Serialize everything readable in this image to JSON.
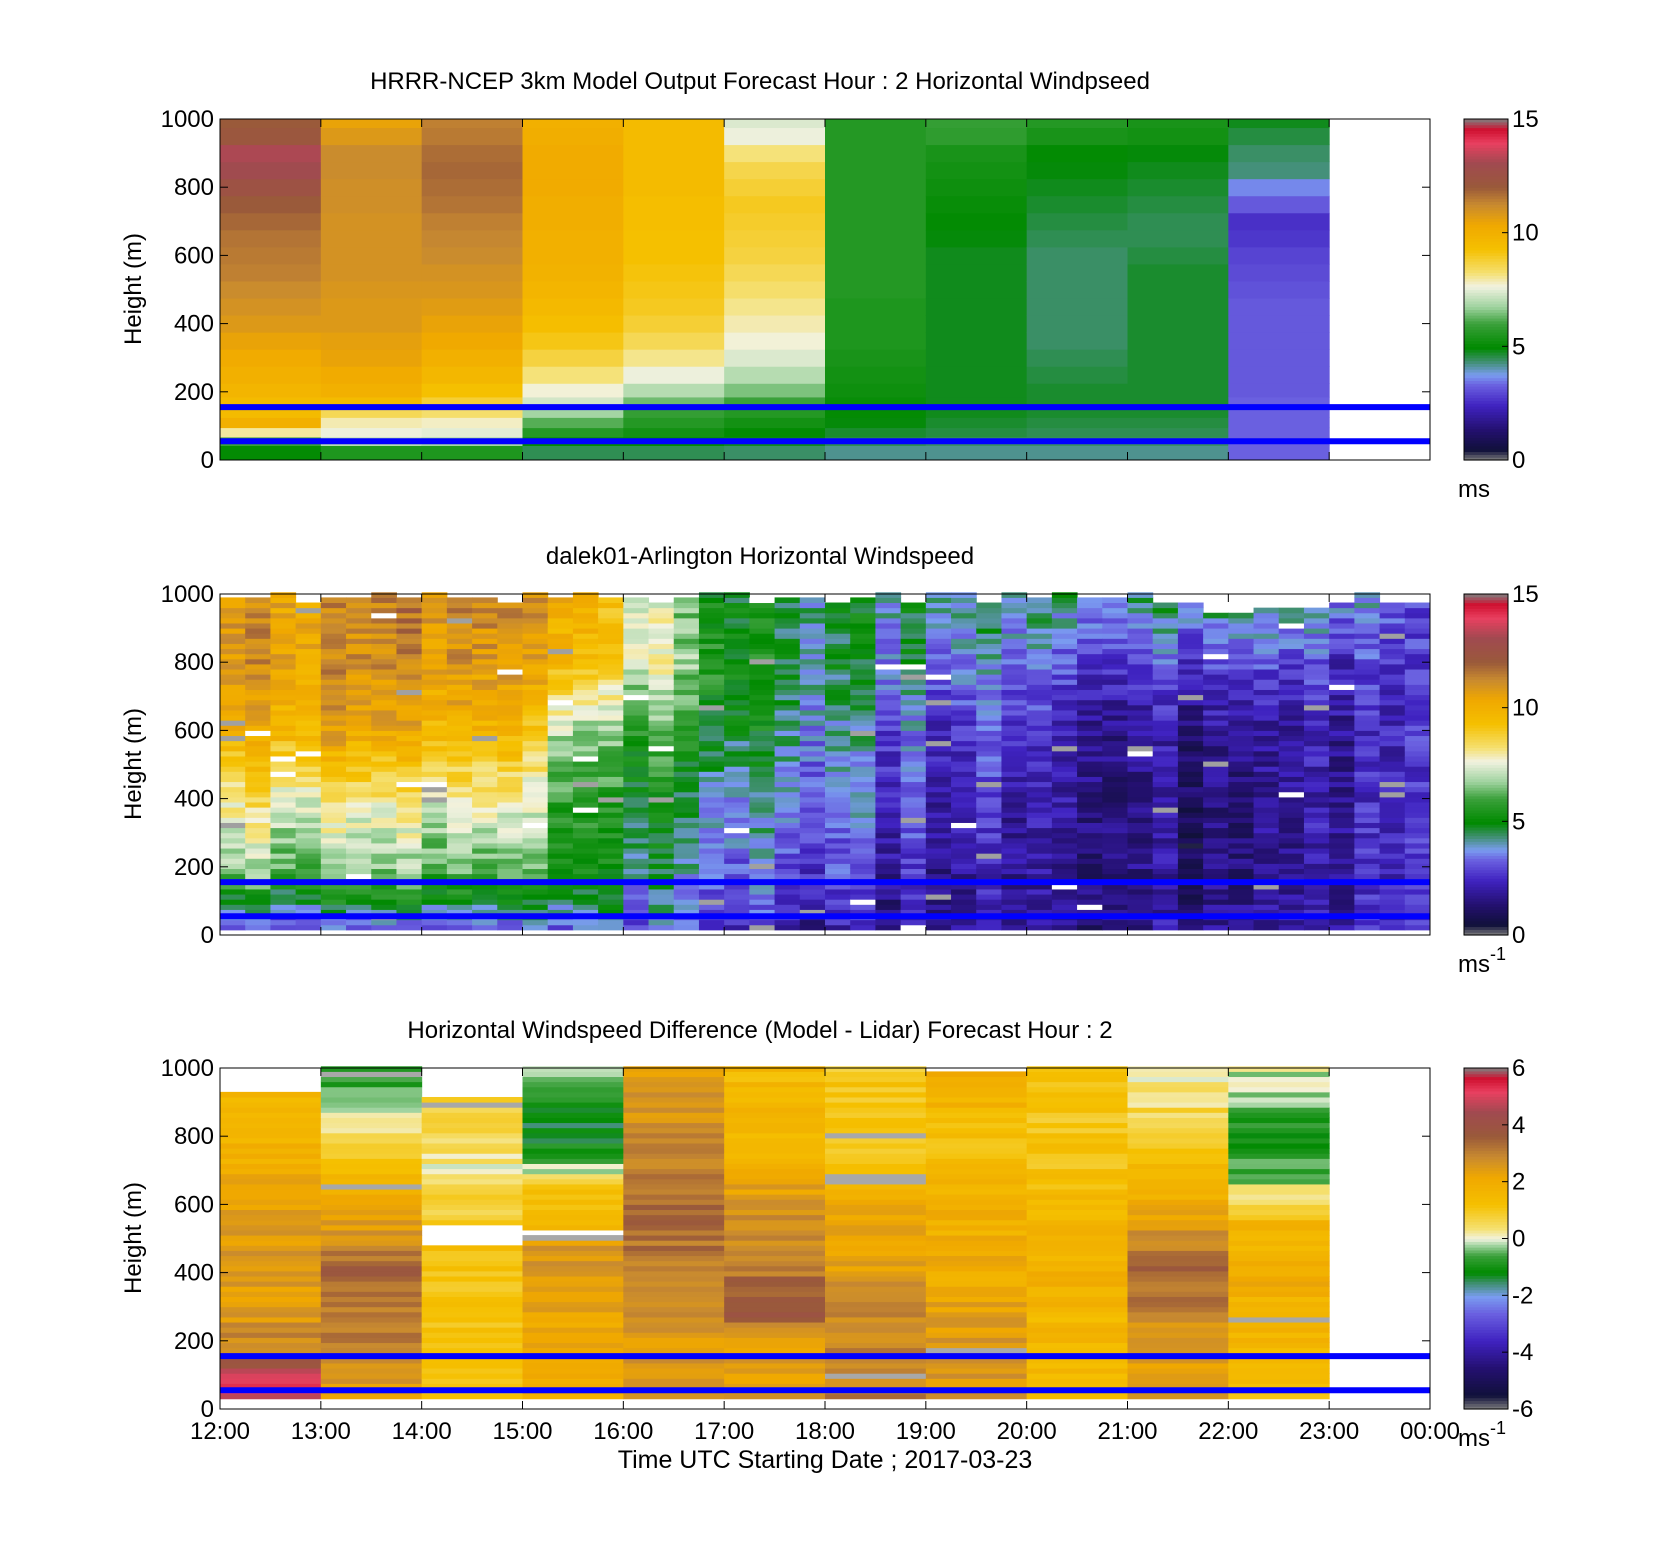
{
  "figure": {
    "xlabel": "Time UTC  Starting Date ; 2017-03-23"
  },
  "palette": {
    "speed": [
      [
        0.0,
        "#7f7f7f"
      ],
      [
        0.03,
        "#10103a"
      ],
      [
        0.09,
        "#241070"
      ],
      [
        0.16,
        "#3f22c0"
      ],
      [
        0.22,
        "#6a60e0"
      ],
      [
        0.25,
        "#7a9cf0"
      ],
      [
        0.29,
        "#3f8f6f"
      ],
      [
        0.33,
        "#008a00"
      ],
      [
        0.4,
        "#3aa03a"
      ],
      [
        0.45,
        "#9fd39f"
      ],
      [
        0.51,
        "#f2f2e0"
      ],
      [
        0.55,
        "#f5e070"
      ],
      [
        0.62,
        "#f5c000"
      ],
      [
        0.69,
        "#f0a800"
      ],
      [
        0.75,
        "#c88a30"
      ],
      [
        0.8,
        "#9a5a3a"
      ],
      [
        0.87,
        "#a04a50"
      ],
      [
        0.93,
        "#e84060"
      ],
      [
        0.97,
        "#d01030"
      ],
      [
        1.0,
        "#7f7f7f"
      ]
    ],
    "diff": [
      [
        0.0,
        "#7f7f7f"
      ],
      [
        0.04,
        "#10103a"
      ],
      [
        0.12,
        "#241070"
      ],
      [
        0.2,
        "#3f22c0"
      ],
      [
        0.28,
        "#6a60e0"
      ],
      [
        0.33,
        "#7a9cf0"
      ],
      [
        0.37,
        "#3f8f6f"
      ],
      [
        0.4,
        "#008a00"
      ],
      [
        0.45,
        "#3aa03a"
      ],
      [
        0.48,
        "#9fd39f"
      ],
      [
        0.5,
        "#f2f2e0"
      ],
      [
        0.53,
        "#f5e070"
      ],
      [
        0.6,
        "#f5c000"
      ],
      [
        0.68,
        "#f0a800"
      ],
      [
        0.74,
        "#c88a30"
      ],
      [
        0.8,
        "#9a5a3a"
      ],
      [
        0.87,
        "#a04a50"
      ],
      [
        0.93,
        "#e84060"
      ],
      [
        0.97,
        "#d01030"
      ],
      [
        1.0,
        "#7f7f7f"
      ]
    ],
    "line_color": "#0000ff"
  },
  "chart_data": [
    {
      "type": "heatmap",
      "id": "model",
      "title": "HRRR-NCEP 3km Model Output   Forecast Hour : 2 Horizontal Windpseed",
      "xlabel": "",
      "ylabel": "Height (m)",
      "x_ticks": [
        "",
        "",
        "",
        "",
        "",
        "",
        "",
        "",
        "",
        "",
        "",
        "",
        ""
      ],
      "y_ticks": [
        "0",
        "200",
        "400",
        "600",
        "800",
        "1000"
      ],
      "xlim": [
        12,
        24
      ],
      "ylim": [
        0,
        1000
      ],
      "colorbar": {
        "min": 0,
        "max": 15,
        "ticks": [
          "0",
          "5",
          "10",
          "15"
        ],
        "unit": "ms",
        "unit_sup": ""
      },
      "reference_lines_m": [
        55,
        155
      ],
      "rows_heights_m": [
        30,
        55,
        80,
        110,
        140,
        170,
        200,
        250,
        300,
        350,
        400,
        450,
        500,
        550,
        600,
        650,
        700,
        750,
        800,
        850,
        900,
        950,
        1000
      ],
      "columns": [
        {
          "start_hour": 12,
          "end_hour": 13,
          "profile_ms": [
            5,
            6,
            8,
            10,
            9.5,
            9.5,
            9.8,
            10,
            10.2,
            10.5,
            10.8,
            11,
            11.2,
            11.4,
            11.5,
            11.6,
            11.8,
            12,
            12.5,
            13,
            13.2,
            12.2,
            12
          ]
        },
        {
          "start_hour": 13,
          "end_hour": 14,
          "profile_ms": [
            5.5,
            7,
            7.6,
            7.9,
            8.5,
            9.5,
            10,
            10.2,
            10.5,
            10.6,
            10.8,
            10.8,
            10.9,
            11,
            11,
            11,
            11,
            11.1,
            11.1,
            11.2,
            11.2,
            10.8,
            10.5
          ]
        },
        {
          "start_hour": 14,
          "end_hour": 15,
          "profile_ms": [
            5.5,
            6.8,
            7.5,
            7.8,
            8.3,
            8.8,
            9.3,
            9.7,
            10,
            10.3,
            10.5,
            10.7,
            10.9,
            11,
            11.2,
            11.3,
            11.4,
            11.6,
            11.7,
            11.8,
            11.7,
            11.5,
            11.4
          ]
        },
        {
          "start_hour": 15,
          "end_hour": 16,
          "profile_ms": [
            4.5,
            5,
            5.6,
            6.2,
            6.8,
            7.3,
            7.7,
            8.2,
            8.7,
            9.1,
            9.4,
            9.6,
            9.8,
            9.9,
            10,
            10,
            10.1,
            10.1,
            10.2,
            10.2,
            10.2,
            10.1,
            10
          ]
        },
        {
          "start_hour": 16,
          "end_hour": 17,
          "profile_ms": [
            4.5,
            5,
            5.3,
            5.6,
            5.9,
            6.4,
            7,
            7.6,
            8.1,
            8.5,
            8.8,
            9,
            9.1,
            9.2,
            9.3,
            9.3,
            9.4,
            9.4,
            9.5,
            9.5,
            9.5,
            9.5,
            9.5
          ]
        },
        {
          "start_hour": 17,
          "end_hour": 18,
          "profile_ms": [
            4.4,
            4.8,
            5,
            5.3,
            5.6,
            6,
            6.5,
            7,
            7.4,
            7.7,
            7.9,
            8.1,
            8.3,
            8.5,
            8.7,
            8.8,
            8.9,
            9,
            8.8,
            8.6,
            8.2,
            7.6,
            7.4
          ]
        },
        {
          "start_hour": 18,
          "end_hour": 19,
          "profile_ms": [
            4.2,
            4.5,
            4.7,
            4.9,
            5,
            5.1,
            5.2,
            5.3,
            5.4,
            5.5,
            5.5,
            5.5,
            5.6,
            5.6,
            5.6,
            5.6,
            5.6,
            5.6,
            5.6,
            5.6,
            5.6,
            5.6,
            5.6
          ]
        },
        {
          "start_hour": 19,
          "end_hour": 20,
          "profile_ms": [
            4.2,
            4.4,
            4.6,
            4.7,
            4.8,
            4.8,
            4.8,
            4.8,
            4.8,
            4.8,
            4.8,
            4.8,
            4.8,
            4.8,
            4.8,
            4.9,
            5,
            5.1,
            5.2,
            5.3,
            5.4,
            5.8,
            5.9
          ]
        },
        {
          "start_hour": 20,
          "end_hour": 21,
          "profile_ms": [
            4.2,
            4.4,
            4.5,
            4.6,
            4.7,
            4.7,
            4.7,
            4.6,
            4.5,
            4.4,
            4.4,
            4.4,
            4.4,
            4.4,
            4.4,
            4.5,
            4.6,
            4.7,
            4.8,
            4.9,
            5,
            5.4,
            5.6
          ]
        },
        {
          "start_hour": 21,
          "end_hour": 22,
          "profile_ms": [
            4.2,
            4.4,
            4.5,
            4.6,
            4.7,
            4.7,
            4.7,
            4.7,
            4.7,
            4.7,
            4.7,
            4.7,
            4.7,
            4.7,
            4.6,
            4.5,
            4.5,
            4.6,
            4.7,
            4.8,
            4.9,
            5.3,
            5.4
          ]
        },
        {
          "start_hour": 22,
          "end_hour": 23,
          "profile_ms": [
            3.3,
            3.3,
            3.3,
            3.3,
            3.3,
            3.3,
            3.2,
            3.2,
            3.2,
            3.2,
            3.2,
            3.2,
            3.1,
            3,
            2.9,
            2.7,
            2.6,
            3.2,
            3.6,
            4.3,
            4.4,
            4.6,
            4.8
          ]
        }
      ]
    },
    {
      "type": "heatmap",
      "id": "lidar",
      "title": "dalek01-Arlington  Horizontal Windspeed",
      "xlabel": "",
      "ylabel": "Height (m)",
      "x_ticks": [
        "",
        "",
        "",
        "",
        "",
        "",
        "",
        "",
        "",
        "",
        "",
        "",
        ""
      ],
      "y_ticks": [
        "0",
        "200",
        "400",
        "600",
        "800",
        "1000"
      ],
      "xlim": [
        12,
        24
      ],
      "ylim": [
        0,
        1000
      ],
      "colorbar": {
        "min": 0,
        "max": 15,
        "ticks": [
          "0",
          "5",
          "10",
          "15"
        ],
        "unit": "ms",
        "unit_sup": "-1"
      },
      "reference_lines_m": [
        55,
        155
      ],
      "scan_interval_hours": 0.25,
      "gate_m": 15,
      "profile_hours": [
        12,
        13,
        14,
        15,
        15.5,
        16,
        16.5,
        17,
        18,
        19,
        20,
        21,
        22,
        23,
        24
      ],
      "profile_heights_m": [
        0,
        100,
        200,
        400,
        600,
        800,
        1000
      ],
      "profile_ms": [
        [
          2.5,
          5.0,
          7.0,
          8.5,
          10.0,
          11.0,
          11.0
        ],
        [
          2.5,
          5.0,
          6.5,
          8.0,
          10.5,
          11.0,
          11.0
        ],
        [
          2.5,
          5.0,
          6.5,
          8.0,
          10.0,
          11.0,
          11.5
        ],
        [
          2.5,
          4.5,
          6.0,
          7.5,
          9.5,
          10.5,
          11.0
        ],
        [
          3.0,
          4.5,
          5.0,
          5.5,
          6.5,
          9.5,
          10.0
        ],
        [
          3.0,
          4.0,
          4.5,
          5.0,
          6.0,
          8.0,
          8.5
        ],
        [
          3.0,
          3.5,
          4.0,
          4.5,
          5.5,
          7.0,
          6.5
        ],
        [
          2.5,
          3.0,
          3.5,
          4.0,
          5.0,
          5.5,
          5.0
        ],
        [
          2.0,
          2.5,
          3.0,
          3.5,
          4.0,
          4.5,
          4.5
        ],
        [
          2.0,
          2.0,
          2.2,
          2.6,
          3.0,
          4.0,
          4.5
        ],
        [
          1.8,
          1.8,
          2.0,
          2.2,
          2.6,
          3.5,
          4.5
        ],
        [
          1.8,
          1.8,
          1.8,
          1.8,
          2.0,
          2.8,
          4.5
        ],
        [
          1.8,
          1.5,
          1.3,
          1.3,
          1.6,
          2.8,
          4.5
        ],
        [
          2.0,
          1.8,
          1.8,
          1.8,
          1.8,
          2.5,
          4.0
        ],
        [
          2.2,
          2.2,
          2.2,
          2.2,
          2.2,
          2.2,
          2.2
        ]
      ],
      "noise_ms": 1.3,
      "max_range_profile": {
        "hours": [
          12,
          13,
          14,
          15,
          16,
          17,
          18,
          19,
          20,
          21,
          22,
          23,
          23.25,
          24
        ],
        "top_m": [
          1000,
          1000,
          1000,
          1000,
          1000,
          1000,
          1000,
          1000,
          1000,
          1000,
          960,
          960,
          1000,
          1000
        ]
      },
      "missing_after_hour": 23.9
    },
    {
      "type": "heatmap",
      "id": "difference",
      "title": "Horizontal Windspeed Difference (Model - Lidar) Forecast Hour : 2",
      "xlabel": "Time UTC  Starting Date ; 2017-03-23",
      "ylabel": "Height (m)",
      "x_ticks": [
        "12:00",
        "13:00",
        "14:00",
        "15:00",
        "16:00",
        "17:00",
        "18:00",
        "19:00",
        "20:00",
        "21:00",
        "22:00",
        "23:00",
        "00:00"
      ],
      "y_ticks": [
        "0",
        "200",
        "400",
        "600",
        "800",
        "1000"
      ],
      "xlim": [
        12,
        24
      ],
      "ylim": [
        0,
        1000
      ],
      "colorbar": {
        "min": -6,
        "max": 6,
        "ticks": [
          "-6",
          "-4",
          "-2",
          "0",
          "2",
          "4",
          "6"
        ],
        "unit": "ms",
        "unit_sup": "-1"
      },
      "reference_lines_m": [
        55,
        155
      ],
      "columns": [
        {
          "start_hour": 12,
          "end_hour": 13,
          "top_m": 925,
          "profile_heights_m": [
            30,
            100,
            170,
            300,
            500,
            700,
            925
          ],
          "profile_diff": [
            5,
            5,
            3,
            2.5,
            2.5,
            2,
            1.5
          ]
        },
        {
          "start_hour": 13,
          "end_hour": 14,
          "top_m": 1000,
          "profile_heights_m": [
            30,
            200,
            400,
            600,
            700,
            800,
            900,
            1000
          ],
          "profile_diff": [
            2.5,
            3,
            3.5,
            2,
            1.5,
            0.5,
            -0.5,
            -1
          ]
        },
        {
          "start_hour": 14,
          "end_hour": 15,
          "top_m": 910,
          "gap_m": [
            480,
            535
          ],
          "profile_heights_m": [
            30,
            200,
            400,
            480,
            535,
            600,
            700,
            910
          ],
          "profile_diff": [
            1,
            1,
            1.2,
            1.2,
            1,
            0.7,
            0.2,
            1
          ]
        },
        {
          "start_hour": 15,
          "end_hour": 16,
          "top_m": 1000,
          "gap_m": [
            500,
            525
          ],
          "profile_heights_m": [
            30,
            200,
            400,
            500,
            525,
            650,
            700,
            800,
            900,
            1000
          ],
          "profile_diff": [
            2,
            2,
            2.5,
            2.5,
            1.5,
            1,
            0,
            -1.5,
            -1,
            0
          ]
        },
        {
          "start_hour": 16,
          "end_hour": 17,
          "top_m": 1000,
          "profile_heights_m": [
            30,
            200,
            400,
            600,
            800,
            1000
          ],
          "profile_diff": [
            2.5,
            2.5,
            3,
            3.5,
            2.8,
            2.5
          ]
        },
        {
          "start_hour": 17,
          "end_hour": 18,
          "top_m": 1000,
          "profile_heights_m": [
            30,
            200,
            300,
            400,
            600,
            800,
            1000
          ],
          "profile_diff": [
            2.5,
            2.5,
            4,
            3.2,
            2.5,
            1.5,
            1.5
          ]
        },
        {
          "start_hour": 18,
          "end_hour": 19,
          "top_m": 1000,
          "profile_heights_m": [
            30,
            200,
            400,
            600,
            700,
            800,
            1000
          ],
          "profile_diff": [
            3,
            3,
            2.5,
            2,
            1,
            1,
            1
          ]
        },
        {
          "start_hour": 19,
          "end_hour": 20,
          "top_m": 990,
          "profile_heights_m": [
            30,
            200,
            400,
            600,
            800,
            990
          ],
          "profile_diff": [
            2.5,
            2.5,
            2,
            1.8,
            1.3,
            2
          ]
        },
        {
          "start_hour": 20,
          "end_hour": 21,
          "top_m": 1000,
          "profile_heights_m": [
            30,
            200,
            400,
            600,
            800,
            1000
          ],
          "profile_diff": [
            1.5,
            1.5,
            1.8,
            1.5,
            1,
            1
          ]
        },
        {
          "start_hour": 21,
          "end_hour": 22,
          "top_m": 1000,
          "profile_heights_m": [
            30,
            200,
            400,
            500,
            600,
            700,
            800,
            900,
            1000
          ],
          "profile_diff": [
            2.5,
            2.5,
            3.5,
            3,
            2,
            1.5,
            1,
            0.5,
            0
          ]
        },
        {
          "start_hour": 22,
          "end_hour": 23,
          "top_m": 1000,
          "profile_heights_m": [
            30,
            200,
            400,
            550,
            600,
            650,
            700,
            800,
            900,
            1000
          ],
          "profile_diff": [
            1,
            1.5,
            2,
            1.5,
            0.5,
            0,
            -0.5,
            -1,
            -0.5,
            0
          ]
        }
      ]
    }
  ]
}
